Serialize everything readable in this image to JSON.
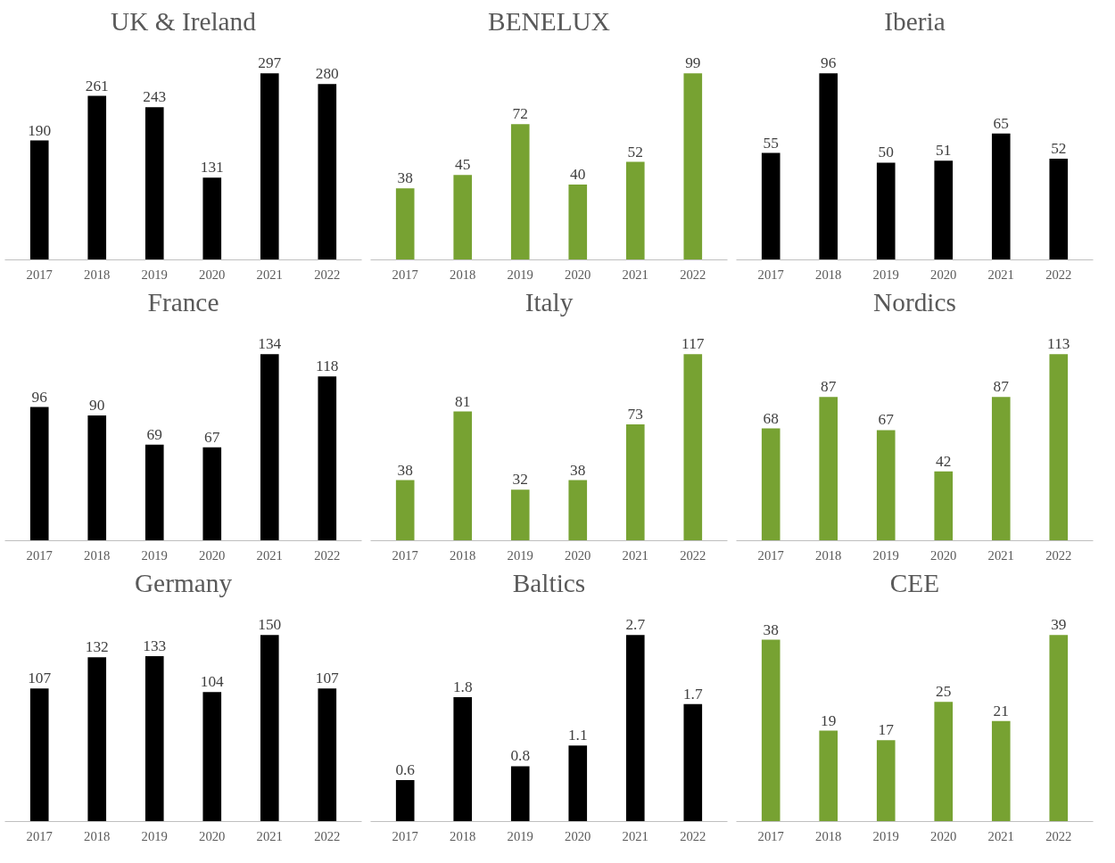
{
  "chart_data": [
    {
      "type": "bar",
      "title": "UK & Ireland",
      "categories": [
        "2017",
        "2018",
        "2019",
        "2020",
        "2021",
        "2022"
      ],
      "values": [
        190,
        261,
        243,
        131,
        297,
        280
      ],
      "color": "#000000",
      "data_labels": true,
      "grid": false
    },
    {
      "type": "bar",
      "title": "BENELUX",
      "categories": [
        "2017",
        "2018",
        "2019",
        "2020",
        "2021",
        "2022"
      ],
      "values": [
        38,
        45,
        72,
        40,
        52,
        99
      ],
      "color": "#77a232",
      "data_labels": true,
      "grid": false
    },
    {
      "type": "bar",
      "title": "Iberia",
      "categories": [
        "2017",
        "2018",
        "2019",
        "2020",
        "2021",
        "2022"
      ],
      "values": [
        55,
        96,
        50,
        51,
        65,
        52
      ],
      "color": "#000000",
      "data_labels": true,
      "grid": false
    },
    {
      "type": "bar",
      "title": "France",
      "categories": [
        "2017",
        "2018",
        "2019",
        "2020",
        "2021",
        "2022"
      ],
      "values": [
        96,
        90,
        69,
        67,
        134,
        118
      ],
      "color": "#000000",
      "data_labels": true,
      "grid": false
    },
    {
      "type": "bar",
      "title": "Italy",
      "categories": [
        "2017",
        "2018",
        "2019",
        "2020",
        "2021",
        "2022"
      ],
      "values": [
        38,
        81,
        32,
        38,
        73,
        117
      ],
      "color": "#77a232",
      "data_labels": true,
      "grid": false
    },
    {
      "type": "bar",
      "title": "Nordics",
      "categories": [
        "2017",
        "2018",
        "2019",
        "2020",
        "2021",
        "2022"
      ],
      "values": [
        68,
        87,
        67,
        42,
        87,
        113
      ],
      "color": "#77a232",
      "data_labels": true,
      "grid": false
    },
    {
      "type": "bar",
      "title": "Germany",
      "categories": [
        "2017",
        "2018",
        "2019",
        "2020",
        "2021",
        "2022"
      ],
      "values": [
        107,
        132,
        133,
        104,
        150,
        107
      ],
      "color": "#000000",
      "data_labels": true,
      "grid": false
    },
    {
      "type": "bar",
      "title": "Baltics",
      "categories": [
        "2017",
        "2018",
        "2019",
        "2020",
        "2021",
        "2022"
      ],
      "values": [
        0.6,
        1.8,
        0.8,
        1.1,
        2.7,
        1.7
      ],
      "color": "#000000",
      "data_labels": true,
      "grid": false
    },
    {
      "type": "bar",
      "title": "CEE",
      "categories": [
        "2017",
        "2018",
        "2019",
        "2020",
        "2021",
        "2022"
      ],
      "values": [
        38,
        19,
        17,
        25,
        21,
        39
      ],
      "color": "#77a232",
      "data_labels": true,
      "grid": false
    }
  ]
}
